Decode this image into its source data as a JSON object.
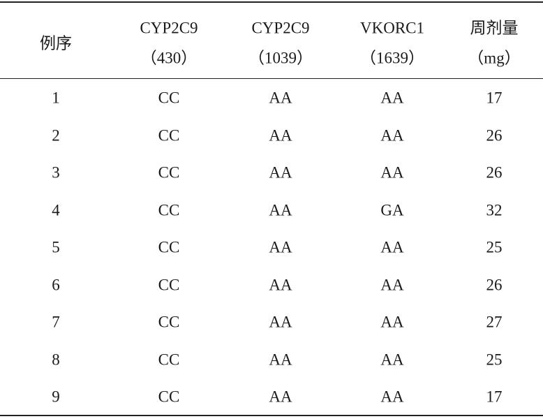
{
  "table": {
    "header": [
      [
        "例序"
      ],
      [
        "CYP2C9",
        "（430）"
      ],
      [
        "CYP2C9",
        "（1039）"
      ],
      [
        "VKORC1",
        "（1639）"
      ],
      [
        "周剂量",
        "（mg）"
      ]
    ],
    "rows": [
      [
        1,
        "CC",
        "AA",
        "AA",
        17
      ],
      [
        2,
        "CC",
        "AA",
        "AA",
        26
      ],
      [
        3,
        "CC",
        "AA",
        "AA",
        26
      ],
      [
        4,
        "CC",
        "AA",
        "GA",
        32
      ],
      [
        5,
        "CC",
        "AA",
        "AA",
        25
      ],
      [
        6,
        "CC",
        "AA",
        "AA",
        26
      ],
      [
        7,
        "CC",
        "AA",
        "AA",
        27
      ],
      [
        8,
        "CC",
        "AA",
        "AA",
        25
      ],
      [
        9,
        "CC",
        "AA",
        "AA",
        17
      ]
    ]
  }
}
